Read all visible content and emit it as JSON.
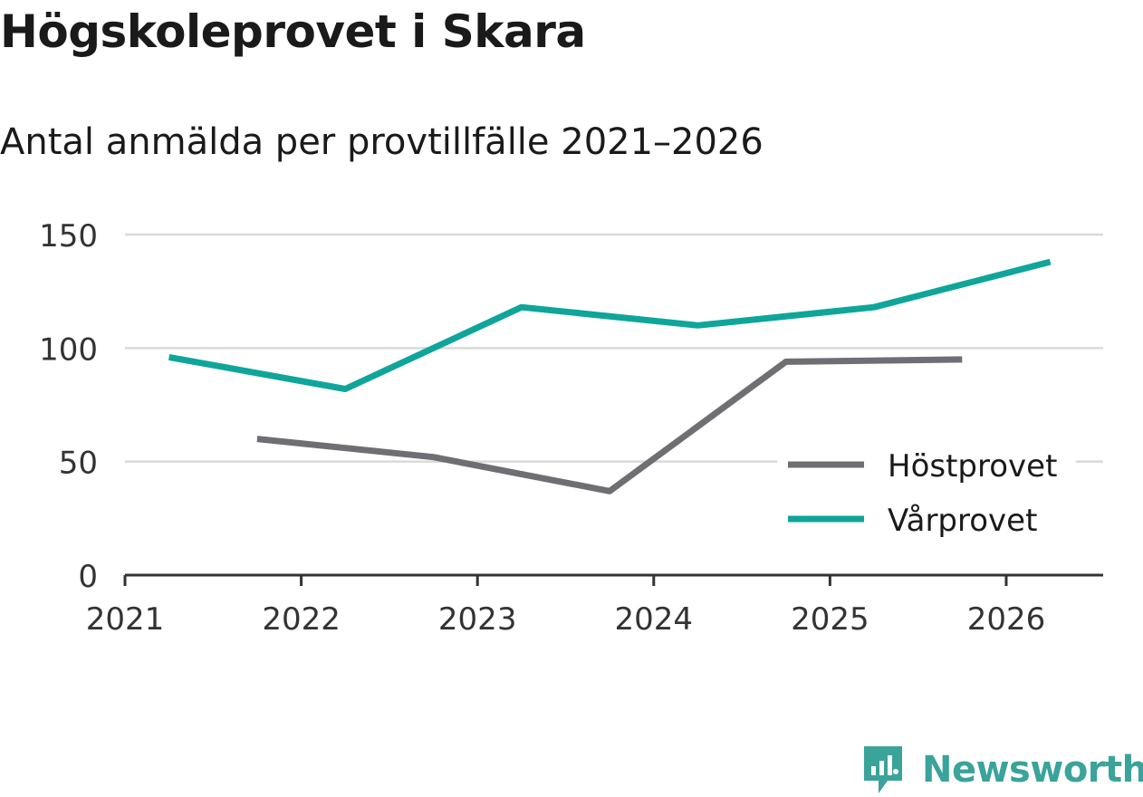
{
  "title": "Högskoleprovet i Skara",
  "subtitle": "Antal anmälda per provtillfälle 2021–2026",
  "brand": {
    "name": "Newsworthy",
    "color": "#3aa39a",
    "icon": "newsworthy-logo-icon"
  },
  "colors": {
    "hostprovet": "#6e6e73",
    "varprovet": "#0fa59a",
    "grid": "#d9d9d9",
    "axis": "#333333"
  },
  "chart_data": {
    "type": "line",
    "xlim": [
      2021,
      2026.55
    ],
    "ylim": [
      0,
      150
    ],
    "x_ticks": [
      2021,
      2022,
      2023,
      2024,
      2025,
      2026
    ],
    "x_tick_labels": [
      "2021",
      "2022",
      "2023",
      "2024",
      "2025",
      "2026"
    ],
    "y_ticks": [
      0,
      50,
      100,
      150
    ],
    "y_tick_labels": [
      "0",
      "50",
      "100",
      "150"
    ],
    "grid": true,
    "legend_position": "bottom-right",
    "series": [
      {
        "name": "Höstprovet",
        "color": "#6e6e73",
        "x": [
          2021.75,
          2022.75,
          2023.75,
          2024.75,
          2025.75
        ],
        "y": [
          60,
          52,
          37,
          94,
          95
        ]
      },
      {
        "name": "Vårprovet",
        "color": "#0fa59a",
        "x": [
          2021.25,
          2022.25,
          2023.25,
          2024.25,
          2025.25,
          2026.25
        ],
        "y": [
          96,
          82,
          118,
          110,
          118,
          138
        ]
      }
    ]
  }
}
